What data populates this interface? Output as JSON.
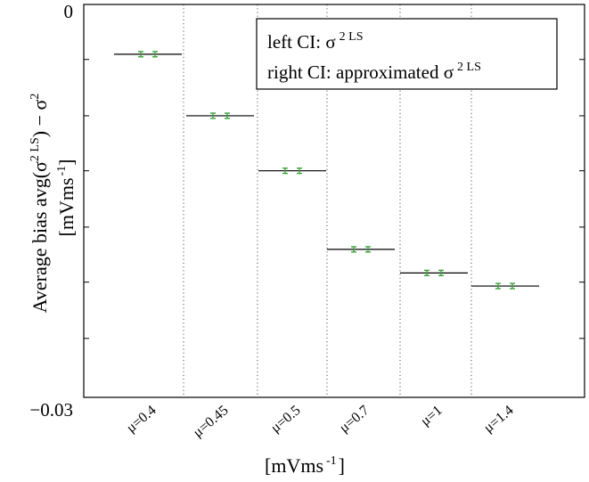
{
  "chart_data": {
    "type": "errorbar",
    "categories": [
      "μ=0.4",
      "μ=0.45",
      "μ=0.5",
      "μ=0.7",
      "μ=1",
      "μ=1.4"
    ],
    "x_prefix": "μ=",
    "x_values": [
      "0.4",
      "0.45",
      "0.5",
      "0.7",
      "1",
      "1.4"
    ],
    "mean_bias": [
      -0.0038,
      -0.0085,
      -0.0127,
      -0.0187,
      -0.0205,
      -0.0215
    ],
    "ci_half_width": 0.0002,
    "ylim": [
      -0.03,
      0
    ],
    "y_tick_labels": [
      {
        "value": 0,
        "label": "0"
      },
      {
        "value": -0.03,
        "label": "−0.03"
      }
    ],
    "y_minor_ticks": [
      -0.0042,
      -0.0085,
      -0.0127,
      -0.017,
      -0.0212,
      -0.0255
    ],
    "ylabel_line1": "Average bias avg(σ",
    "ylabel_sup": "2 LS",
    "ylabel_line1_end": ") − σ",
    "ylabel_sup2": "2",
    "ylabel_line2_pre": "[mVms",
    "ylabel_line2_sup": "-1",
    "ylabel_line2_post": "]",
    "xlabel_pre": "[mVms",
    "xlabel_sup": "-1",
    "xlabel_post": "]",
    "legend": {
      "line1_pre": "left CI: σ",
      "line1_sup": "2 LS",
      "line2_pre": "right CI: approximated σ",
      "line2_sup": "2 LS"
    },
    "grid": "vertical dotted separators",
    "colors": {
      "ci": "#3aa33a",
      "mean": "#000000",
      "axis": "#000000",
      "separator": "#555555"
    }
  }
}
